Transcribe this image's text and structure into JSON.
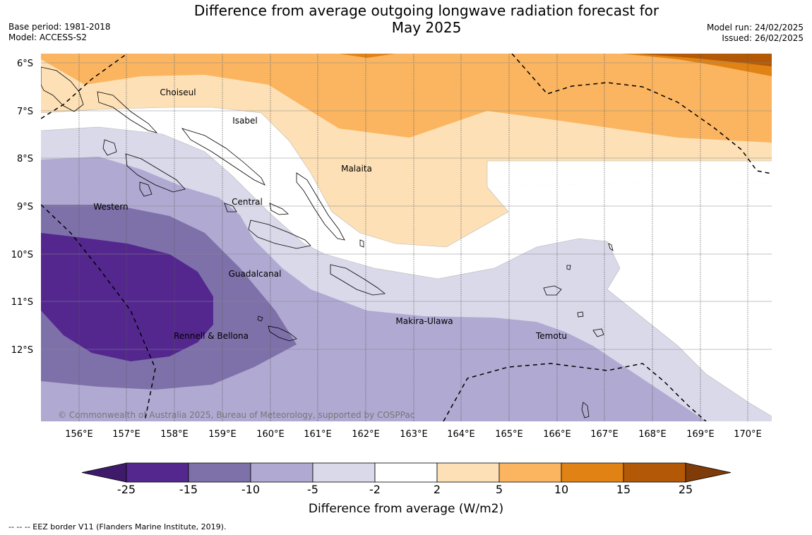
{
  "header": {
    "title_line1": "Difference from average outgoing longwave radiation forecast for",
    "title_line2": "May 2025",
    "base_period": "Base period: 1981-2018",
    "model": "Model: ACCESS-S2",
    "model_run": "Model run: 24/02/2025",
    "issued": "Issued: 26/02/2025"
  },
  "map": {
    "longitude_labels": [
      "156°E",
      "157°E",
      "158°E",
      "159°E",
      "160°E",
      "161°E",
      "162°E",
      "163°E",
      "164°E",
      "165°E",
      "166°E",
      "167°E",
      "168°E",
      "169°E",
      "170°E"
    ],
    "latitude_labels": [
      "6°S",
      "7°S",
      "8°S",
      "9°S",
      "10°S",
      "11°S",
      "12°S"
    ],
    "region_labels": [
      "Choiseul",
      "Isabel",
      "Malaita",
      "Western",
      "Central",
      "Guadalcanal",
      "Makira-Ulawa",
      "Rennell & Bellona",
      "Temotu"
    ],
    "copyright": "© Commonwealth of Australia 2025, Bureau of Meteorology, supported by COSPPac"
  },
  "colorbar": {
    "tick_labels": [
      "-25",
      "-15",
      "-10",
      "-5",
      "-2",
      "2",
      "5",
      "10",
      "15",
      "25"
    ],
    "colors": [
      "#3f1a6b",
      "#54278f",
      "#7e71aa",
      "#b0a9d2",
      "#d9d9ea",
      "#ffffff",
      "#fee0b6",
      "#fbb560",
      "#e08214",
      "#b35806",
      "#7f3b08"
    ],
    "label": "Difference from average (W/m2)"
  },
  "footer": {
    "legend_note": "--  --  -- EEZ border V11 (Flanders Marine Institute, 2019)."
  }
}
